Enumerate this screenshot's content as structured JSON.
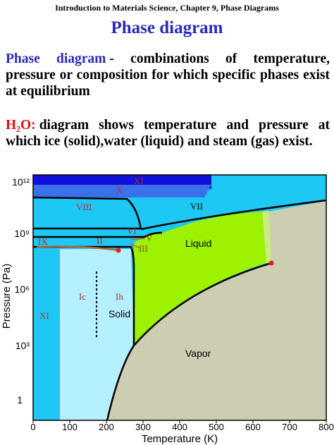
{
  "header": {
    "running_title": "Introduction to Materials Science, Chapter 9, Phase Diagrams",
    "title": "Phase diagram"
  },
  "paragraphs": [
    {
      "term": "Phase diagram",
      "text": "- combinations of temperature, pressure or composition for which specific phases exist at equilibrium"
    },
    {
      "term": "H₂O:",
      "text": "diagram shows temperature and pressure at which ice (solid),water (liquid) and steam (gas) exist."
    }
  ],
  "figure": {
    "x_axis_label": "Temperature (K)",
    "y_axis_label": "Pressure (Pa)",
    "x_ticks": [
      "0",
      "100",
      "200",
      "300",
      "400",
      "500",
      "600",
      "700",
      "800"
    ],
    "y_ticks": [
      "10¹²",
      "10⁹",
      "10⁶",
      "10³",
      "1"
    ],
    "regions": [
      "XI",
      "X",
      "VIII",
      "VII",
      "VI",
      "V",
      "IX",
      "II",
      "III",
      "Ic",
      "Ih",
      "XI",
      "Solid",
      "Liquid",
      "Vapor"
    ]
  }
}
